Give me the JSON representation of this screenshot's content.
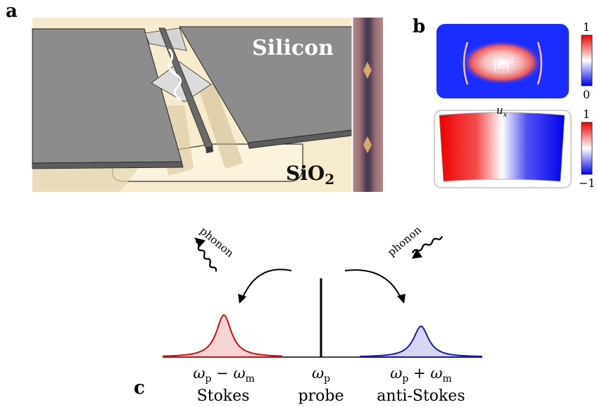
{
  "panel_a": {
    "letter": "a",
    "label_silicon": "Silicon",
    "label_sio2_main": "SiO",
    "label_sio2_sub": "2"
  },
  "panel_b": {
    "letter": "b",
    "field_label": "|E|",
    "field_label_sup": "2",
    "colorbar_top": {
      "max": "1",
      "min": "0"
    },
    "mech_label": "u",
    "mech_label_sub": "x",
    "colorbar_bottom": {
      "max": "1",
      "min": "−1"
    }
  },
  "panel_c": {
    "letter": "c",
    "phonon_left": "phonon",
    "phonon_right": "phonon",
    "stokes_freq": "ωp − ωm",
    "stokes_freq_parts": {
      "w1": "ω",
      "s1": "p",
      "op": " − ",
      "w2": "ω",
      "s2": "m"
    },
    "stokes_label": "Stokes",
    "probe_freq_parts": {
      "w": "ω",
      "s": "p"
    },
    "probe_label": "probe",
    "antistokes_freq_parts": {
      "w1": "ω",
      "s1": "p",
      "op": " + ",
      "w2": "ω",
      "s2": "m"
    },
    "antistokes_label": "anti-Stokes",
    "colors": {
      "stokes": "#c0121a",
      "antistokes": "#1a1aa8",
      "probe": "#000000"
    }
  }
}
